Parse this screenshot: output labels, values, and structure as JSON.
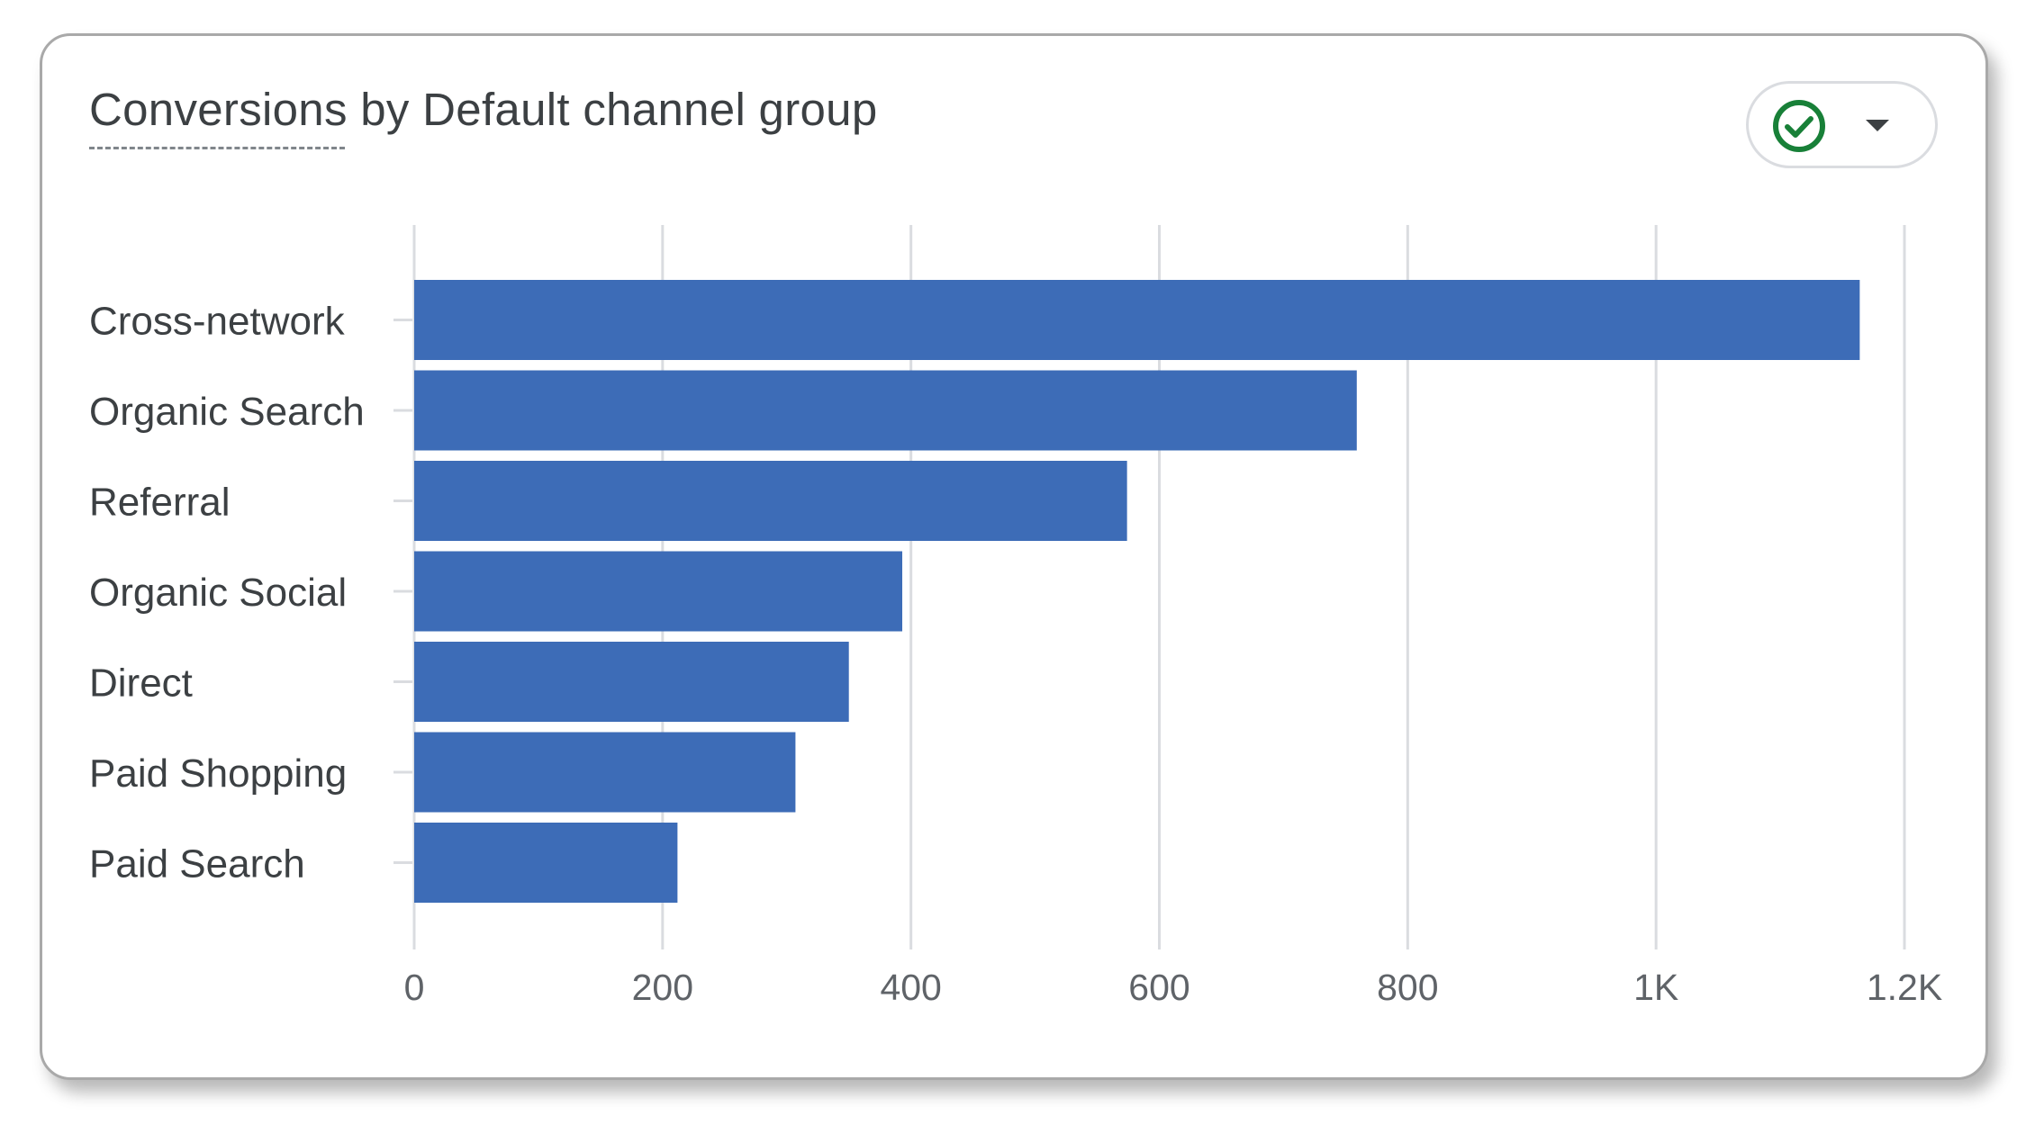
{
  "card": {
    "title": "Conversions by Default channel group",
    "status_icon": "check-circle-icon",
    "menu_icon": "chevron-down-icon"
  },
  "colors": {
    "bar": "#3d6cb7",
    "check": "#188038",
    "grid": "#dadce0",
    "text": "#3c4043"
  },
  "chart_data": {
    "type": "bar",
    "orientation": "horizontal",
    "categories": [
      "Cross-network",
      "Organic Search",
      "Referral",
      "Organic Social",
      "Direct",
      "Paid Shopping",
      "Paid Search"
    ],
    "values": [
      1164,
      759,
      574,
      393,
      350,
      307,
      212
    ],
    "xlim": [
      0,
      1200
    ],
    "x_ticks": [
      0,
      200,
      400,
      600,
      800,
      1000,
      1200
    ],
    "x_tick_labels": [
      "0",
      "200",
      "400",
      "600",
      "800",
      "1K",
      "1.2K"
    ],
    "grid": true,
    "legend": "none"
  }
}
